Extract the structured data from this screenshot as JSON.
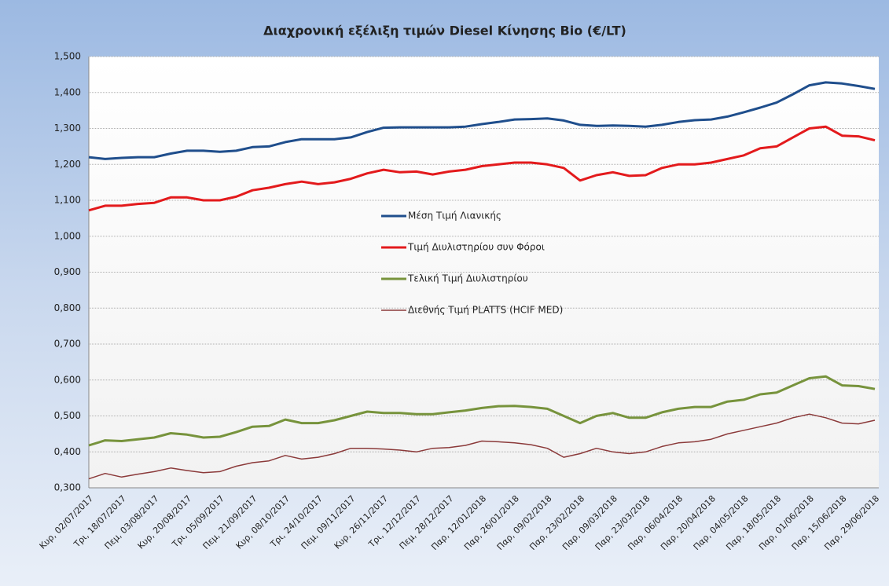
{
  "chart_data": {
    "type": "line",
    "title": "Διαχρονική εξέλιξη τιμών Diesel Κίνησης Bio (€/LT)",
    "categories": [
      "Κυρ, 02/07/2017",
      null,
      "Τρι, 18/07/2017",
      null,
      "Πεμ, 03/08/2017",
      null,
      "Κυρ, 20/08/2017",
      null,
      "Τρι, 05/09/2017",
      null,
      "Πεμ, 21/09/2017",
      null,
      "Κυρ, 08/10/2017",
      null,
      "Τρι, 24/10/2017",
      null,
      "Πεμ, 09/11/2017",
      null,
      "Κυρ, 26/11/2017",
      null,
      "Τρι, 12/12/2017",
      null,
      "Πεμ, 28/12/2017",
      null,
      "Παρ, 12/01/2018",
      null,
      "Παρ, 26/01/2018",
      null,
      "Παρ, 09/02/2018",
      null,
      "Παρ, 23/02/2018",
      null,
      "Παρ, 09/03/2018",
      null,
      "Παρ, 23/03/2018",
      null,
      "Παρ, 06/04/2018",
      null,
      "Παρ, 20/04/2018",
      null,
      "Παρ, 04/05/2018",
      null,
      "Παρ, 18/05/2018",
      null,
      "Παρ, 01/06/2018",
      null,
      "Παρ, 15/06/2018",
      null,
      "Παρ, 29/06/2018"
    ],
    "series": [
      {
        "name": "Μέση Τιμή Λιανικής",
        "color": "#1f4e8c",
        "values": [
          1.22,
          1.215,
          1.218,
          1.22,
          1.22,
          1.23,
          1.238,
          1.238,
          1.235,
          1.238,
          1.248,
          1.25,
          1.262,
          1.27,
          1.27,
          1.27,
          1.275,
          1.29,
          1.302,
          1.303,
          1.303,
          1.303,
          1.303,
          1.305,
          1.312,
          1.318,
          1.325,
          1.326,
          1.328,
          1.322,
          1.31,
          1.307,
          1.308,
          1.307,
          1.305,
          1.31,
          1.318,
          1.323,
          1.325,
          1.333,
          1.345,
          1.358,
          1.372,
          1.395,
          1.42,
          1.428,
          1.425,
          1.418,
          1.41
        ]
      },
      {
        "name": "Τιμή Διυλιστηρίου συν Φόροι",
        "color": "#e31a1c",
        "values": [
          1.072,
          1.085,
          1.085,
          1.09,
          1.093,
          1.108,
          1.108,
          1.1,
          1.1,
          1.11,
          1.128,
          1.135,
          1.145,
          1.152,
          1.145,
          1.15,
          1.16,
          1.175,
          1.185,
          1.178,
          1.18,
          1.172,
          1.18,
          1.185,
          1.195,
          1.2,
          1.205,
          1.205,
          1.2,
          1.19,
          1.155,
          1.17,
          1.178,
          1.168,
          1.17,
          1.19,
          1.2,
          1.2,
          1.205,
          1.215,
          1.225,
          1.245,
          1.25,
          1.275,
          1.3,
          1.305,
          1.28,
          1.278,
          1.267
        ]
      },
      {
        "name": "Τελική Τιμή Διυλιστηρίου",
        "color": "#77933c",
        "values": [
          0.418,
          0.432,
          0.43,
          0.435,
          0.44,
          0.452,
          0.448,
          0.44,
          0.442,
          0.455,
          0.47,
          0.472,
          0.49,
          0.48,
          0.48,
          0.488,
          0.5,
          0.512,
          0.508,
          0.508,
          0.505,
          0.505,
          0.51,
          0.515,
          0.522,
          0.527,
          0.528,
          0.525,
          0.52,
          0.5,
          0.48,
          0.5,
          0.508,
          0.495,
          0.495,
          0.51,
          0.52,
          0.525,
          0.525,
          0.54,
          0.545,
          0.56,
          0.565,
          0.585,
          0.605,
          0.61,
          0.585,
          0.583,
          0.575
        ]
      },
      {
        "name": "Διεθνής Τιμή PLATTS (HCIF MED)",
        "color": "#8b3a3a",
        "values": [
          0.325,
          0.34,
          0.33,
          0.338,
          0.345,
          0.355,
          0.348,
          0.342,
          0.345,
          0.36,
          0.37,
          0.375,
          0.39,
          0.38,
          0.385,
          0.395,
          0.41,
          0.41,
          0.408,
          0.405,
          0.4,
          0.41,
          0.412,
          0.418,
          0.43,
          0.428,
          0.425,
          0.42,
          0.41,
          0.385,
          0.395,
          0.41,
          0.4,
          0.395,
          0.4,
          0.415,
          0.425,
          0.428,
          0.435,
          0.45,
          0.46,
          0.47,
          0.48,
          0.495,
          0.505,
          0.495,
          0.48,
          0.478,
          0.488
        ]
      }
    ],
    "ylim": [
      0.3,
      1.5
    ],
    "yticks": [
      {
        "value": 0.3,
        "label": "0,300"
      },
      {
        "value": 0.4,
        "label": "0,400"
      },
      {
        "value": 0.5,
        "label": "0,500"
      },
      {
        "value": 0.6,
        "label": "0,600"
      },
      {
        "value": 0.7,
        "label": "0,700"
      },
      {
        "value": 0.8,
        "label": "0,800"
      },
      {
        "value": 0.9,
        "label": "0,900"
      },
      {
        "value": 1.0,
        "label": "1,000"
      },
      {
        "value": 1.1,
        "label": "1,100"
      },
      {
        "value": 1.2,
        "label": "1,200"
      },
      {
        "value": 1.3,
        "label": "1,300"
      },
      {
        "value": 1.4,
        "label": "1,400"
      },
      {
        "value": 1.5,
        "label": "1,500"
      }
    ],
    "grid": true,
    "legend": "center"
  }
}
